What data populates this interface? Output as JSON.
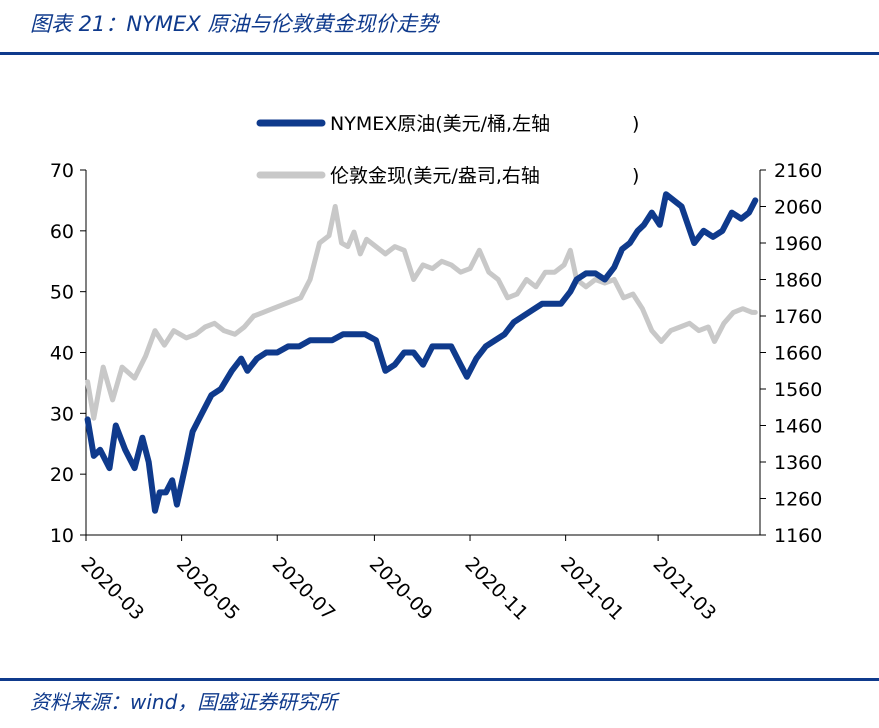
{
  "header": {
    "title": "图表 21：NYMEX 原油与伦敦黄金现价走势"
  },
  "footer": {
    "source": "资料来源：wind，国盛证券研究所"
  },
  "chart_data": {
    "type": "line",
    "left_axis": {
      "ylim": [
        10,
        70
      ],
      "ticks": [
        "70",
        "60",
        "50",
        "40",
        "30",
        "20",
        "10"
      ]
    },
    "right_axis": {
      "ylim": [
        1160,
        2160
      ],
      "ticks": [
        "2160",
        "2060",
        "1960",
        "1860",
        "1760",
        "1660",
        "1560",
        "1460",
        "1360",
        "1260",
        "1160"
      ]
    },
    "x_ticks": [
      "2020-03",
      "2020-05",
      "2020-07",
      "2020-09",
      "2020-11",
      "2021-01",
      "2021-03"
    ],
    "legend_position": "top-center",
    "grid": false,
    "series": [
      {
        "name": "NYMEX原油(美元/桶,左轴",
        "axis": "left",
        "color": "#0f3a8c",
        "points": [
          [
            "2020-03-02",
            29
          ],
          [
            "2020-03-06",
            23
          ],
          [
            "2020-03-10",
            24
          ],
          [
            "2020-03-16",
            21
          ],
          [
            "2020-03-20",
            28
          ],
          [
            "2020-03-26",
            24
          ],
          [
            "2020-04-01",
            21
          ],
          [
            "2020-04-06",
            26
          ],
          [
            "2020-04-10",
            22
          ],
          [
            "2020-04-14",
            14
          ],
          [
            "2020-04-17",
            17
          ],
          [
            "2020-04-21",
            17
          ],
          [
            "2020-04-25",
            19
          ],
          [
            "2020-04-28",
            15
          ],
          [
            "2020-05-04",
            22
          ],
          [
            "2020-05-08",
            27
          ],
          [
            "2020-05-14",
            30
          ],
          [
            "2020-05-20",
            33
          ],
          [
            "2020-05-26",
            34
          ],
          [
            "2020-06-02",
            37
          ],
          [
            "2020-06-08",
            39
          ],
          [
            "2020-06-12",
            37
          ],
          [
            "2020-06-18",
            39
          ],
          [
            "2020-06-24",
            40
          ],
          [
            "2020-07-01",
            40
          ],
          [
            "2020-07-08",
            41
          ],
          [
            "2020-07-15",
            41
          ],
          [
            "2020-07-22",
            42
          ],
          [
            "2020-07-29",
            42
          ],
          [
            "2020-08-05",
            42
          ],
          [
            "2020-08-12",
            43
          ],
          [
            "2020-08-19",
            43
          ],
          [
            "2020-08-26",
            43
          ],
          [
            "2020-09-02",
            42
          ],
          [
            "2020-09-08",
            37
          ],
          [
            "2020-09-14",
            38
          ],
          [
            "2020-09-20",
            40
          ],
          [
            "2020-09-26",
            40
          ],
          [
            "2020-10-02",
            38
          ],
          [
            "2020-10-08",
            41
          ],
          [
            "2020-10-14",
            41
          ],
          [
            "2020-10-20",
            41
          ],
          [
            "2020-10-26",
            38
          ],
          [
            "2020-10-30",
            36
          ],
          [
            "2020-11-05",
            39
          ],
          [
            "2020-11-11",
            41
          ],
          [
            "2020-11-17",
            42
          ],
          [
            "2020-11-23",
            43
          ],
          [
            "2020-11-29",
            45
          ],
          [
            "2020-12-05",
            46
          ],
          [
            "2020-12-11",
            47
          ],
          [
            "2020-12-17",
            48
          ],
          [
            "2020-12-23",
            48
          ],
          [
            "2020-12-29",
            48
          ],
          [
            "2021-01-04",
            50
          ],
          [
            "2021-01-08",
            52
          ],
          [
            "2021-01-14",
            53
          ],
          [
            "2021-01-20",
            53
          ],
          [
            "2021-01-26",
            52
          ],
          [
            "2021-02-01",
            54
          ],
          [
            "2021-02-06",
            57
          ],
          [
            "2021-02-11",
            58
          ],
          [
            "2021-02-16",
            60
          ],
          [
            "2021-02-20",
            61
          ],
          [
            "2021-02-25",
            63
          ],
          [
            "2021-03-02",
            61
          ],
          [
            "2021-03-06",
            66
          ],
          [
            "2021-03-11",
            65
          ],
          [
            "2021-03-16",
            64
          ],
          [
            "2021-03-20",
            61
          ],
          [
            "2021-03-24",
            58
          ],
          [
            "2021-03-30",
            60
          ],
          [
            "2021-04-05",
            59
          ],
          [
            "2021-04-11",
            60
          ],
          [
            "2021-04-17",
            63
          ],
          [
            "2021-04-23",
            62
          ],
          [
            "2021-04-28",
            63
          ],
          [
            "2021-05-02",
            65
          ]
        ]
      },
      {
        "name": "伦敦金现(美元/盎司,右轴",
        "axis": "right",
        "color": "#c8c8c8",
        "points": [
          [
            "2020-03-02",
            1580
          ],
          [
            "2020-03-06",
            1480
          ],
          [
            "2020-03-12",
            1620
          ],
          [
            "2020-03-18",
            1530
          ],
          [
            "2020-03-24",
            1620
          ],
          [
            "2020-04-01",
            1590
          ],
          [
            "2020-04-08",
            1650
          ],
          [
            "2020-04-14",
            1720
          ],
          [
            "2020-04-20",
            1680
          ],
          [
            "2020-04-26",
            1720
          ],
          [
            "2020-05-04",
            1700
          ],
          [
            "2020-05-10",
            1710
          ],
          [
            "2020-05-16",
            1730
          ],
          [
            "2020-05-22",
            1740
          ],
          [
            "2020-05-28",
            1720
          ],
          [
            "2020-06-04",
            1710
          ],
          [
            "2020-06-10",
            1730
          ],
          [
            "2020-06-16",
            1760
          ],
          [
            "2020-06-22",
            1770
          ],
          [
            "2020-06-28",
            1780
          ],
          [
            "2020-07-04",
            1790
          ],
          [
            "2020-07-10",
            1800
          ],
          [
            "2020-07-16",
            1810
          ],
          [
            "2020-07-22",
            1860
          ],
          [
            "2020-07-28",
            1960
          ],
          [
            "2020-08-03",
            1980
          ],
          [
            "2020-08-07",
            2060
          ],
          [
            "2020-08-11",
            1960
          ],
          [
            "2020-08-15",
            1950
          ],
          [
            "2020-08-19",
            1990
          ],
          [
            "2020-08-23",
            1930
          ],
          [
            "2020-08-27",
            1970
          ],
          [
            "2020-09-02",
            1950
          ],
          [
            "2020-09-08",
            1930
          ],
          [
            "2020-09-14",
            1950
          ],
          [
            "2020-09-20",
            1940
          ],
          [
            "2020-09-26",
            1860
          ],
          [
            "2020-10-02",
            1900
          ],
          [
            "2020-10-08",
            1890
          ],
          [
            "2020-10-14",
            1910
          ],
          [
            "2020-10-20",
            1900
          ],
          [
            "2020-10-26",
            1880
          ],
          [
            "2020-11-01",
            1890
          ],
          [
            "2020-11-07",
            1940
          ],
          [
            "2020-11-13",
            1880
          ],
          [
            "2020-11-19",
            1860
          ],
          [
            "2020-11-25",
            1810
          ],
          [
            "2020-12-01",
            1820
          ],
          [
            "2020-12-07",
            1860
          ],
          [
            "2020-12-13",
            1840
          ],
          [
            "2020-12-19",
            1880
          ],
          [
            "2020-12-25",
            1880
          ],
          [
            "2020-12-31",
            1900
          ],
          [
            "2021-01-04",
            1940
          ],
          [
            "2021-01-08",
            1860
          ],
          [
            "2021-01-14",
            1840
          ],
          [
            "2021-01-20",
            1860
          ],
          [
            "2021-01-26",
            1850
          ],
          [
            "2021-02-01",
            1860
          ],
          [
            "2021-02-07",
            1810
          ],
          [
            "2021-02-13",
            1820
          ],
          [
            "2021-02-19",
            1780
          ],
          [
            "2021-02-25",
            1720
          ],
          [
            "2021-03-03",
            1690
          ],
          [
            "2021-03-09",
            1720
          ],
          [
            "2021-03-15",
            1730
          ],
          [
            "2021-03-21",
            1740
          ],
          [
            "2021-03-27",
            1720
          ],
          [
            "2021-04-02",
            1730
          ],
          [
            "2021-04-06",
            1690
          ],
          [
            "2021-04-12",
            1740
          ],
          [
            "2021-04-18",
            1770
          ],
          [
            "2021-04-24",
            1780
          ],
          [
            "2021-04-30",
            1770
          ],
          [
            "2021-05-02",
            1770
          ]
        ]
      }
    ]
  }
}
